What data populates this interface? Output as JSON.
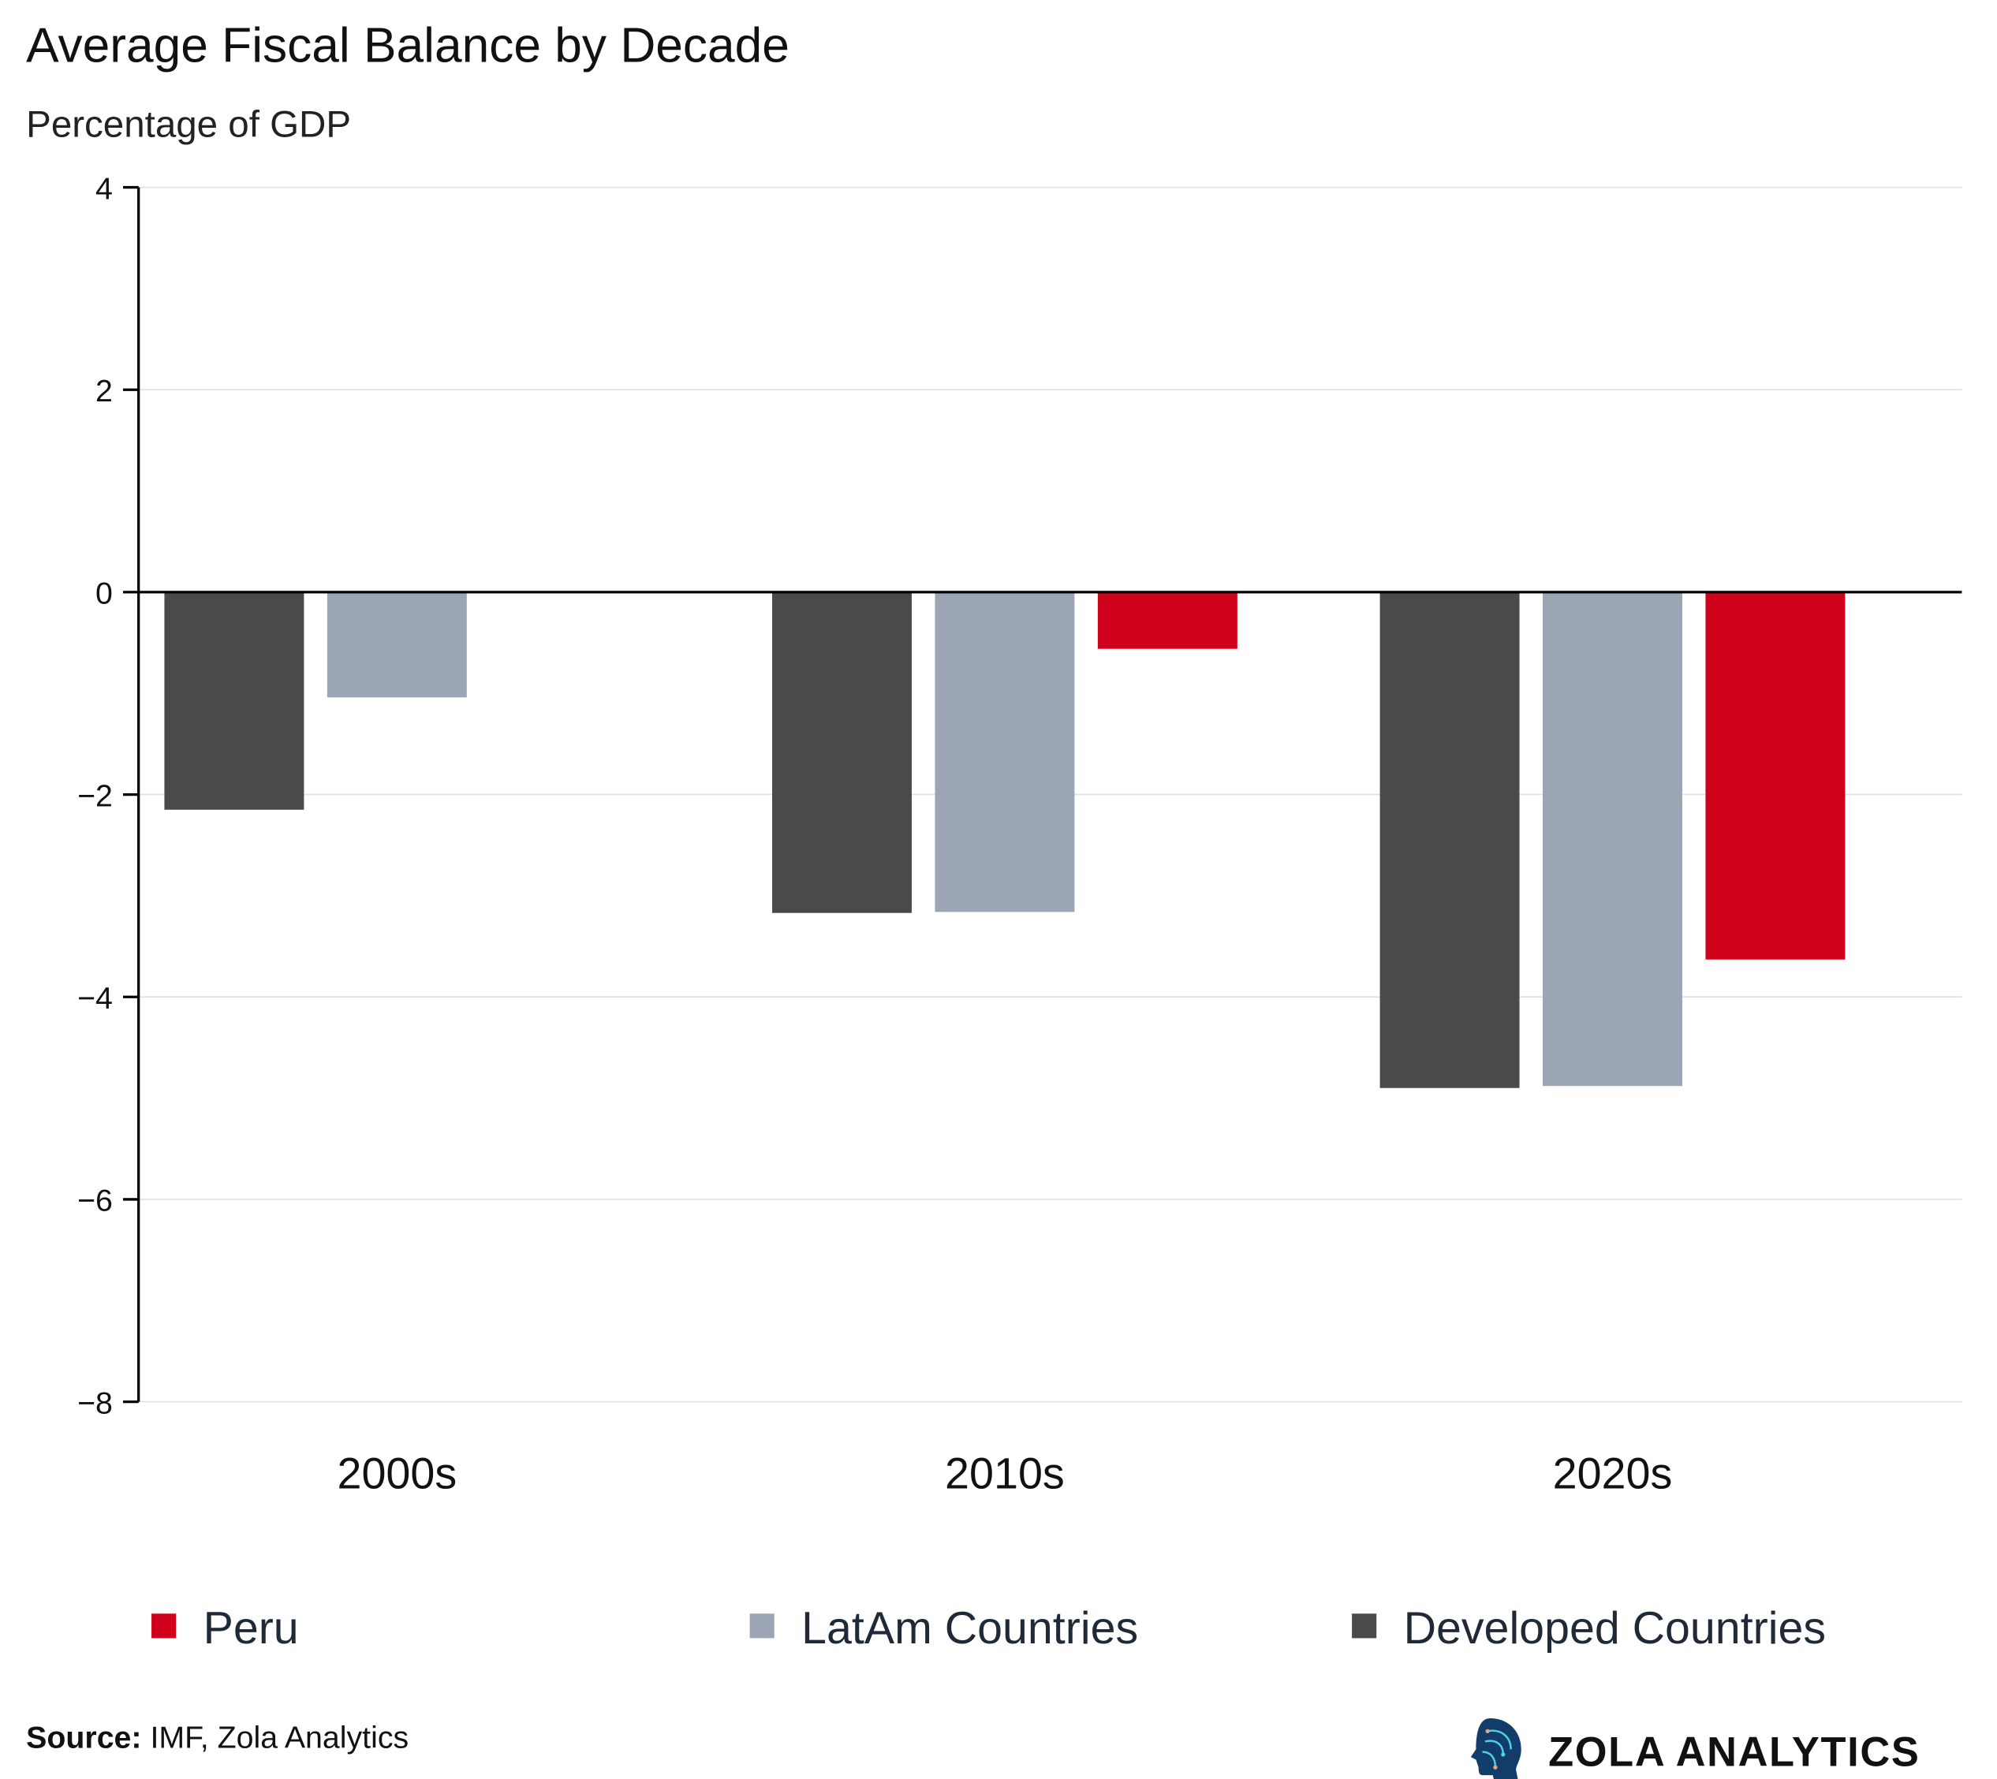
{
  "title": "Average Fiscal Balance by Decade",
  "subtitle": "Percentage of GDP",
  "source_label": "Source:",
  "source_text": " IMF, Zola Analytics",
  "brand": "ZOLA ANALYTICS",
  "chart_data": {
    "type": "bar",
    "categories": [
      "2000s",
      "2010s",
      "2020s"
    ],
    "series": [
      {
        "name": "Developed Countries",
        "color": "#4a4a4a",
        "values": [
          -2.15,
          -3.17,
          -4.9
        ]
      },
      {
        "name": "LatAm Countries",
        "color": "#9ca5b4",
        "values": [
          -1.04,
          -3.16,
          -4.88
        ]
      },
      {
        "name": "Peru",
        "color": "#d0021b",
        "values": [
          0.0,
          -0.56,
          -3.63
        ]
      }
    ],
    "legend_order": [
      "Peru",
      "LatAm Countries",
      "Developed Countries"
    ],
    "yticks": [
      "4",
      "2",
      "0",
      "−2",
      "−4",
      "−6",
      "−8"
    ],
    "ylim": [
      -8,
      4
    ],
    "grid": true,
    "legend_position": "bottom"
  }
}
